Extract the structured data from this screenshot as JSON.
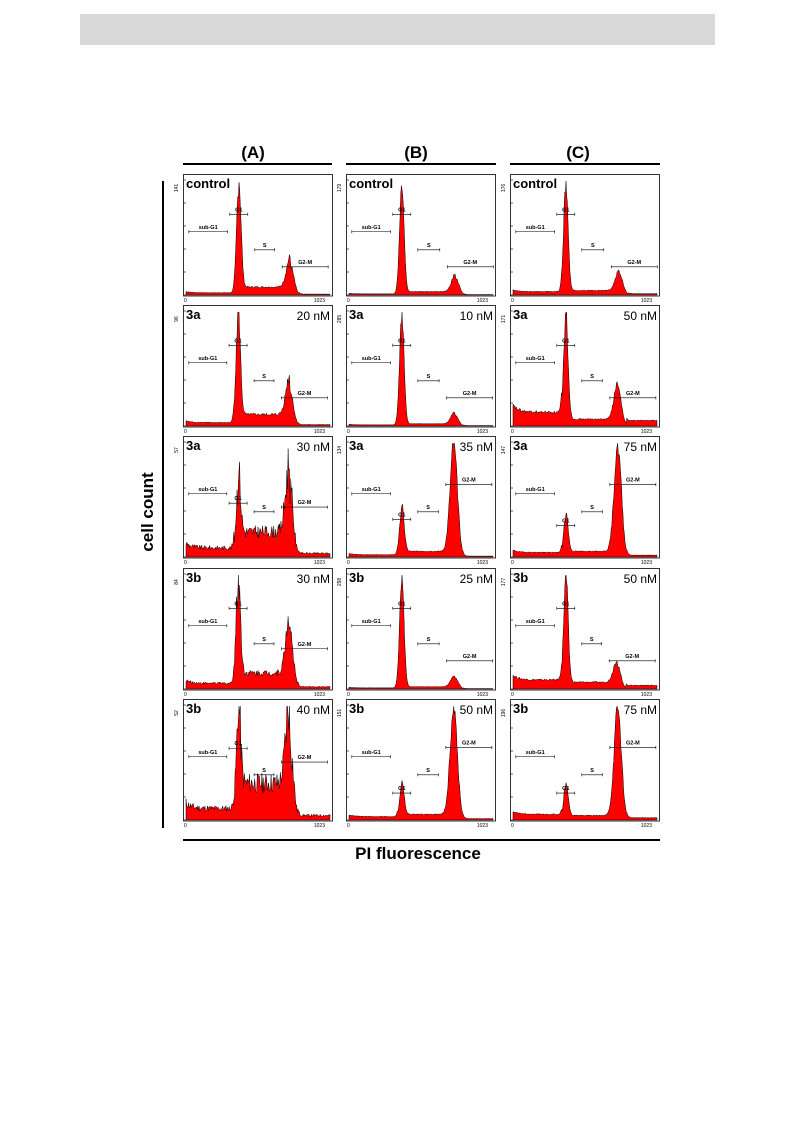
{
  "column_headers": [
    "(A)",
    "(B)",
    "(C)"
  ],
  "y_axis_label": "cell count",
  "x_axis_label": "PI fluorescence",
  "colors": {
    "histogram_fill": "#ff0000",
    "histogram_outline": "#000000",
    "header_band": "#d9d9d9"
  },
  "gate_labels": [
    "sub-G1",
    "G1",
    "S",
    "G2-M"
  ],
  "x_tick_labels": [
    "0",
    "1023"
  ],
  "chart_data": [
    {
      "type": "area",
      "panel": "A1",
      "compound": "control",
      "concentration": "",
      "y_max_label": "141",
      "xlim": [
        0,
        1023
      ],
      "g1_channel": 375,
      "g2m_channel": 740,
      "g1_peak": 0.95,
      "g2m_peak": 0.26,
      "s_level": 0.07,
      "sub_g1_level": 0.02,
      "noise": 0.1
    },
    {
      "type": "area",
      "panel": "A2",
      "compound": "3a",
      "concentration": "20 nM",
      "y_max_label": "96",
      "xlim": [
        0,
        1023
      ],
      "g1_channel": 370,
      "g2m_channel": 735,
      "g1_peak": 0.95,
      "g2m_peak": 0.33,
      "s_level": 0.1,
      "sub_g1_level": 0.03,
      "noise": 0.12
    },
    {
      "type": "area",
      "panel": "A3",
      "compound": "3a",
      "concentration": "30 nM",
      "y_max_label": "57",
      "xlim": [
        0,
        1023
      ],
      "g1_channel": 370,
      "g2m_channel": 735,
      "g1_peak": 0.6,
      "g2m_peak": 0.62,
      "s_level": 0.22,
      "sub_g1_level": 0.08,
      "noise": 0.25
    },
    {
      "type": "area",
      "panel": "A4",
      "compound": "3b",
      "concentration": "30 nM",
      "y_max_label": "84",
      "xlim": [
        0,
        1023
      ],
      "g1_channel": 370,
      "g2m_channel": 735,
      "g1_peak": 0.9,
      "g2m_peak": 0.5,
      "s_level": 0.14,
      "sub_g1_level": 0.05,
      "noise": 0.2
    },
    {
      "type": "area",
      "panel": "A5",
      "compound": "3b",
      "concentration": "40 nM",
      "y_max_label": "52",
      "xlim": [
        0,
        1023
      ],
      "g1_channel": 370,
      "g2m_channel": 735,
      "g1_peak": 0.8,
      "g2m_peak": 0.72,
      "s_level": 0.32,
      "sub_g1_level": 0.1,
      "noise": 0.28
    },
    {
      "type": "area",
      "panel": "B1",
      "compound": "control",
      "concentration": "",
      "y_max_label": "179",
      "xlim": [
        0,
        1023
      ],
      "g1_channel": 375,
      "g2m_channel": 755,
      "g1_peak": 0.95,
      "g2m_peak": 0.15,
      "s_level": 0.03,
      "sub_g1_level": 0.01,
      "noise": 0.08
    },
    {
      "type": "area",
      "panel": "B2",
      "compound": "3a",
      "concentration": "10 nM",
      "y_max_label": "285",
      "xlim": [
        0,
        1023
      ],
      "g1_channel": 375,
      "g2m_channel": 750,
      "g1_peak": 0.95,
      "g2m_peak": 0.1,
      "s_level": 0.02,
      "sub_g1_level": 0.01,
      "noise": 0.06
    },
    {
      "type": "area",
      "panel": "B3",
      "compound": "3a",
      "concentration": "35 nM",
      "y_max_label": "134",
      "xlim": [
        0,
        1023
      ],
      "g1_channel": 375,
      "g2m_channel": 745,
      "g1_peak": 0.42,
      "g2m_peak": 0.95,
      "s_level": 0.05,
      "sub_g1_level": 0.02,
      "noise": 0.08
    },
    {
      "type": "area",
      "panel": "B4",
      "compound": "3b",
      "concentration": "25 nM",
      "y_max_label": "298",
      "xlim": [
        0,
        1023
      ],
      "g1_channel": 375,
      "g2m_channel": 750,
      "g1_peak": 0.95,
      "g2m_peak": 0.1,
      "s_level": 0.02,
      "sub_g1_level": 0.01,
      "noise": 0.06
    },
    {
      "type": "area",
      "panel": "B5",
      "compound": "3b",
      "concentration": "50 nM",
      "y_max_label": "151",
      "xlim": [
        0,
        1023
      ],
      "g1_channel": 375,
      "g2m_channel": 745,
      "g1_peak": 0.3,
      "g2m_peak": 0.95,
      "s_level": 0.05,
      "sub_g1_level": 0.03,
      "noise": 0.08
    },
    {
      "type": "area",
      "panel": "C1",
      "compound": "control",
      "concentration": "",
      "y_max_label": "176",
      "xlim": [
        0,
        1023
      ],
      "g1_channel": 375,
      "g2m_channel": 755,
      "g1_peak": 0.95,
      "g2m_peak": 0.18,
      "s_level": 0.04,
      "sub_g1_level": 0.03,
      "noise": 0.08
    },
    {
      "type": "area",
      "panel": "C2",
      "compound": "3a",
      "concentration": "50 nM",
      "y_max_label": "171",
      "xlim": [
        0,
        1023
      ],
      "g1_channel": 375,
      "g2m_channel": 745,
      "g1_peak": 0.95,
      "g2m_peak": 0.32,
      "s_level": 0.06,
      "sub_g1_level": 0.12,
      "noise": 0.1
    },
    {
      "type": "area",
      "panel": "C3",
      "compound": "3a",
      "concentration": "75 nM",
      "y_max_label": "147",
      "xlim": [
        0,
        1023
      ],
      "g1_channel": 375,
      "g2m_channel": 745,
      "g1_peak": 0.35,
      "g2m_peak": 0.95,
      "s_level": 0.05,
      "sub_g1_level": 0.04,
      "noise": 0.08
    },
    {
      "type": "area",
      "panel": "C4",
      "compound": "3b",
      "concentration": "50 nM",
      "y_max_label": "177",
      "xlim": [
        0,
        1023
      ],
      "g1_channel": 375,
      "g2m_channel": 740,
      "g1_peak": 0.95,
      "g2m_peak": 0.2,
      "s_level": 0.06,
      "sub_g1_level": 0.08,
      "noise": 0.1
    },
    {
      "type": "area",
      "panel": "C5",
      "compound": "3b",
      "concentration": "75 nM",
      "y_max_label": "196",
      "xlim": [
        0,
        1023
      ],
      "g1_channel": 375,
      "g2m_channel": 745,
      "g1_peak": 0.3,
      "g2m_peak": 0.95,
      "s_level": 0.04,
      "sub_g1_level": 0.05,
      "noise": 0.08
    }
  ]
}
